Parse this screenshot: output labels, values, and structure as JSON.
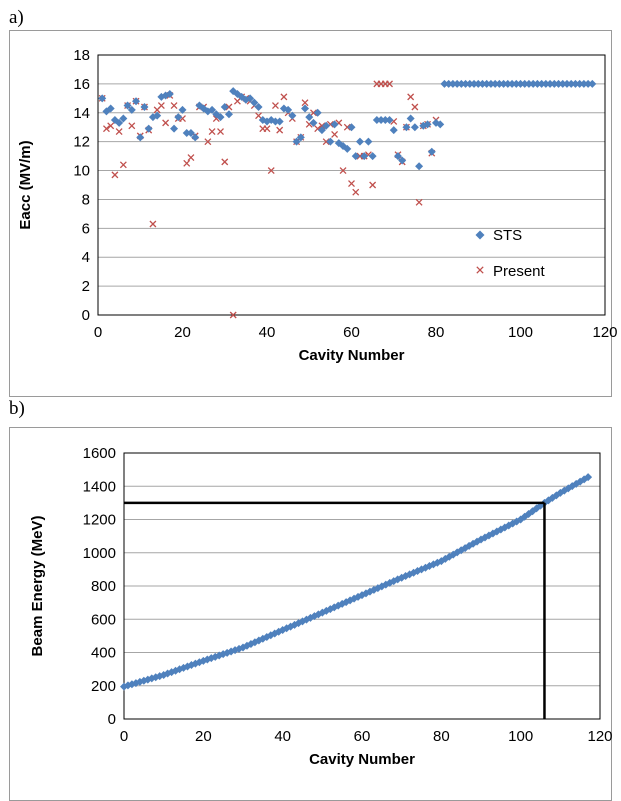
{
  "panels": {
    "a_label": "a)",
    "b_label": "b)"
  },
  "chart_data": [
    {
      "type": "scatter",
      "xlabel": "Cavity Number",
      "ylabel": "Eacc (MV/m)",
      "xlim": [
        0,
        120
      ],
      "ylim": [
        0,
        18
      ],
      "xticks": [
        0,
        20,
        40,
        60,
        80,
        100,
        120
      ],
      "yticks": [
        0,
        2,
        4,
        6,
        8,
        10,
        12,
        14,
        16,
        18
      ],
      "grid": "horizontal",
      "legend": "bottom-right",
      "colors": {
        "STS": "#4f81bd",
        "Present": "#c0504d"
      },
      "series": [
        {
          "name": "STS",
          "marker": "diamond",
          "x": [
            1,
            2,
            3,
            4,
            5,
            6,
            7,
            8,
            9,
            10,
            11,
            12,
            13,
            14,
            15,
            16,
            17,
            18,
            19,
            20,
            21,
            22,
            23,
            24,
            25,
            26,
            27,
            28,
            29,
            30,
            31,
            32,
            33,
            34,
            35,
            36,
            37,
            38,
            39,
            40,
            41,
            42,
            43,
            44,
            45,
            46,
            47,
            48,
            49,
            50,
            51,
            52,
            53,
            54,
            55,
            56,
            57,
            58,
            59,
            60,
            61,
            62,
            63,
            64,
            65,
            66,
            67,
            68,
            69,
            70,
            71,
            72,
            73,
            74,
            75,
            76,
            77,
            78,
            79,
            80,
            81,
            82,
            83,
            84,
            85,
            86,
            87,
            88,
            89,
            90,
            91,
            92,
            93,
            94,
            95,
            96,
            97,
            98,
            99,
            100,
            101,
            102,
            103,
            104,
            105,
            106,
            107,
            108,
            109,
            110,
            111,
            112,
            113,
            114,
            115,
            116,
            117
          ],
          "values": [
            15.0,
            14.1,
            14.3,
            13.5,
            13.3,
            13.6,
            14.5,
            14.2,
            14.8,
            12.3,
            14.4,
            12.9,
            13.7,
            13.8,
            15.1,
            15.2,
            15.3,
            12.9,
            13.7,
            14.2,
            12.6,
            12.6,
            12.3,
            14.5,
            14.3,
            14.1,
            14.2,
            13.9,
            13.7,
            14.4,
            13.9,
            15.5,
            15.3,
            15.1,
            14.9,
            15.0,
            14.7,
            14.4,
            13.5,
            13.4,
            13.5,
            13.4,
            13.4,
            14.3,
            14.2,
            13.8,
            12.0,
            12.3,
            14.3,
            13.7,
            13.3,
            14.0,
            12.8,
            13.1,
            12.0,
            13.2,
            11.9,
            11.7,
            11.5,
            13.0,
            11.0,
            12.0,
            11.0,
            12.0,
            11.0,
            13.5,
            13.5,
            13.5,
            13.5,
            12.8,
            11.0,
            10.7,
            13.0,
            13.6,
            13.0,
            10.3,
            13.1,
            13.2,
            11.3,
            13.3,
            13.2,
            16,
            16,
            16,
            16,
            16,
            16,
            16,
            16,
            16,
            16,
            16,
            16,
            16,
            16,
            16,
            16,
            16,
            16,
            16,
            16,
            16,
            16,
            16,
            16,
            16,
            16,
            16,
            16,
            16,
            16,
            16,
            16,
            16,
            16,
            16,
            16
          ]
        },
        {
          "name": "Present",
          "marker": "x",
          "x": [
            1,
            2,
            3,
            4,
            5,
            6,
            7,
            8,
            9,
            10,
            11,
            12,
            13,
            14,
            15,
            16,
            17,
            18,
            19,
            20,
            21,
            22,
            23,
            24,
            25,
            26,
            27,
            28,
            29,
            30,
            31,
            32,
            33,
            34,
            35,
            36,
            37,
            38,
            39,
            40,
            41,
            42,
            43,
            44,
            45,
            46,
            47,
            48,
            49,
            50,
            51,
            52,
            53,
            54,
            55,
            56,
            57,
            58,
            59,
            60,
            61,
            62,
            63,
            64,
            65,
            66,
            67,
            68,
            69,
            70,
            71,
            72,
            73,
            74,
            75,
            76,
            77,
            78,
            79,
            80
          ],
          "values": [
            15.0,
            12.9,
            13.1,
            9.7,
            12.7,
            10.4,
            14.5,
            13.1,
            14.8,
            12.4,
            14.4,
            12.8,
            6.3,
            14.2,
            14.5,
            13.3,
            15.2,
            14.5,
            13.6,
            13.6,
            10.5,
            10.9,
            12.4,
            14.4,
            14.4,
            12.0,
            12.7,
            13.6,
            12.7,
            10.6,
            14.4,
            0.0,
            14.8,
            15.1,
            15.0,
            14.8,
            14.5,
            13.8,
            12.9,
            12.9,
            10.0,
            14.5,
            12.8,
            15.1,
            14.0,
            13.6,
            12.0,
            12.3,
            14.7,
            13.2,
            14.0,
            12.9,
            13.1,
            12.0,
            13.2,
            12.5,
            13.3,
            10.0,
            13.0,
            9.1,
            8.5,
            11.0,
            11.0,
            11.1,
            9.0,
            16,
            16,
            16,
            16,
            13.4,
            11.1,
            10.6,
            13.0,
            15.1,
            14.4,
            7.8,
            13.1,
            13.2,
            11.2,
            13.5
          ]
        }
      ]
    },
    {
      "type": "scatter",
      "xlabel": "Cavity Number",
      "ylabel": "Beam Energy (MeV)",
      "xlim": [
        0,
        120
      ],
      "ylim": [
        0,
        1600
      ],
      "xticks": [
        0,
        20,
        40,
        60,
        80,
        100,
        120
      ],
      "yticks": [
        0,
        200,
        400,
        600,
        800,
        1000,
        1200,
        1400,
        1600
      ],
      "grid": "horizontal",
      "legend": "none",
      "colors": {
        "points": "#4f81bd",
        "reference": "#000000"
      },
      "reference_lines": {
        "y": 1300,
        "x": 106
      },
      "series": [
        {
          "name": "",
          "marker": "diamond",
          "x_start": 0,
          "x_end": 117,
          "anchors": [
            [
              0,
              195
            ],
            [
              10,
              265
            ],
            [
              20,
              350
            ],
            [
              30,
              430
            ],
            [
              40,
              535
            ],
            [
              50,
              640
            ],
            [
              60,
              745
            ],
            [
              70,
              850
            ],
            [
              80,
              950
            ],
            [
              90,
              1080
            ],
            [
              100,
              1200
            ],
            [
              106,
              1300
            ],
            [
              110,
              1360
            ],
            [
              117,
              1455
            ]
          ]
        }
      ]
    }
  ]
}
